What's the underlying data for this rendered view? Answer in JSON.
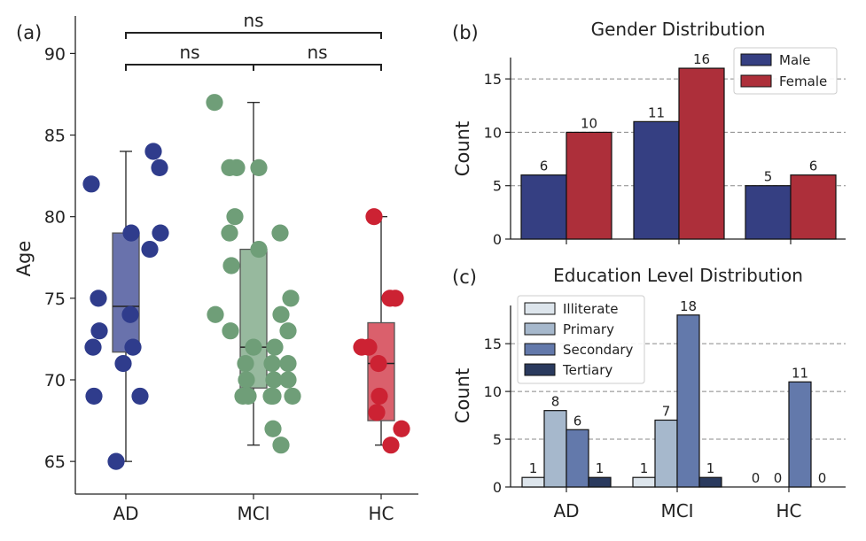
{
  "colors": {
    "ad": "#2f3c8c",
    "mci": "#6f9e78",
    "hc": "#cc2233",
    "male": "#353f82",
    "female": "#ad2f3a",
    "illiterate": "#dde5ec",
    "primary": "#a6b8cc",
    "secondary": "#6379ab",
    "tertiary": "#2a3a5e"
  },
  "chart_data": [
    {
      "panel": "(a)",
      "type": "scatter",
      "subtype": "box-strip",
      "title": "",
      "xlabel": "",
      "ylabel": "Age",
      "categories": [
        "AD",
        "MCI",
        "HC"
      ],
      "ylim": [
        63,
        92.3
      ],
      "yticks": [
        65,
        70,
        75,
        80,
        85,
        90
      ],
      "boxes": [
        {
          "group": "AD",
          "q1": 71.7,
          "median": 74.5,
          "q3": 79,
          "whisker_low": 65,
          "whisker_high": 84
        },
        {
          "group": "MCI",
          "q1": 69.5,
          "median": 72,
          "q3": 78,
          "whisker_low": 66,
          "whisker_high": 87
        },
        {
          "group": "HC",
          "q1": 67.5,
          "median": 71,
          "q3": 73.5,
          "whisker_low": 66,
          "whisker_high": 80
        }
      ],
      "points": [
        {
          "group": "AD",
          "values": [
            82,
            75,
            73,
            72,
            69,
            71,
            65,
            79,
            74,
            72,
            69,
            84,
            83,
            79,
            78
          ]
        },
        {
          "group": "MCI",
          "values": [
            87,
            83,
            83,
            83,
            80,
            79,
            77,
            74,
            73,
            71,
            70,
            69,
            69,
            69,
            79,
            78,
            75,
            74,
            73,
            72,
            72,
            71,
            71,
            70,
            70,
            69,
            69,
            67,
            66
          ]
        },
        {
          "group": "HC",
          "values": [
            80,
            72,
            72,
            71,
            69,
            68,
            75,
            75,
            67,
            66
          ]
        }
      ],
      "significance": [
        {
          "from": "AD",
          "to": "MCI",
          "label": "ns"
        },
        {
          "from": "MCI",
          "to": "HC",
          "label": "ns"
        },
        {
          "from": "AD",
          "to": "HC",
          "label": "ns"
        }
      ]
    },
    {
      "panel": "(b)",
      "type": "bar",
      "title": "Gender Distribution",
      "xlabel": "",
      "ylabel": "Count",
      "categories": [
        "AD",
        "MCI",
        "HC"
      ],
      "ylim": [
        0,
        17
      ],
      "yticks": [
        0,
        5,
        10,
        15
      ],
      "grid": "horizontal dashed",
      "legend": "top-right",
      "series": [
        {
          "name": "Male",
          "values": [
            6,
            11,
            5
          ]
        },
        {
          "name": "Female",
          "values": [
            10,
            16,
            6
          ]
        }
      ]
    },
    {
      "panel": "(c)",
      "type": "bar",
      "title": "Education Level Distribution",
      "xlabel": "",
      "ylabel": "Count",
      "categories": [
        "AD",
        "MCI",
        "HC"
      ],
      "ylim": [
        0,
        19
      ],
      "yticks": [
        0,
        5,
        10,
        15
      ],
      "grid": "horizontal dashed",
      "legend": "top-left",
      "series": [
        {
          "name": "Illiterate",
          "values": [
            1,
            1,
            0
          ]
        },
        {
          "name": "Primary",
          "values": [
            8,
            7,
            0
          ]
        },
        {
          "name": "Secondary",
          "values": [
            6,
            18,
            11
          ]
        },
        {
          "name": "Tertiary",
          "values": [
            1,
            1,
            0
          ]
        }
      ]
    }
  ]
}
